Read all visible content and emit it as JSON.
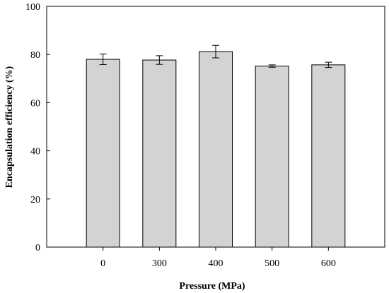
{
  "chart_data": {
    "type": "bar",
    "title": "",
    "xlabel": "Pressure (MPa)",
    "ylabel": "Encapsulation efficiency (%)",
    "categories": [
      "0",
      "300",
      "400",
      "500",
      "600"
    ],
    "values": [
      78.0,
      77.7,
      81.2,
      75.2,
      75.7
    ],
    "errors": [
      2.2,
      1.8,
      2.6,
      0.5,
      1.1
    ],
    "ylim": [
      0,
      100
    ],
    "yticks": [
      0,
      20,
      40,
      60,
      80,
      100
    ],
    "ytick_labels": [
      "0",
      "20",
      "40",
      "60",
      "80",
      "100"
    ],
    "grid": false,
    "legend": "none",
    "bar_color": "#d3d3d3",
    "edge_color": "#000000"
  }
}
